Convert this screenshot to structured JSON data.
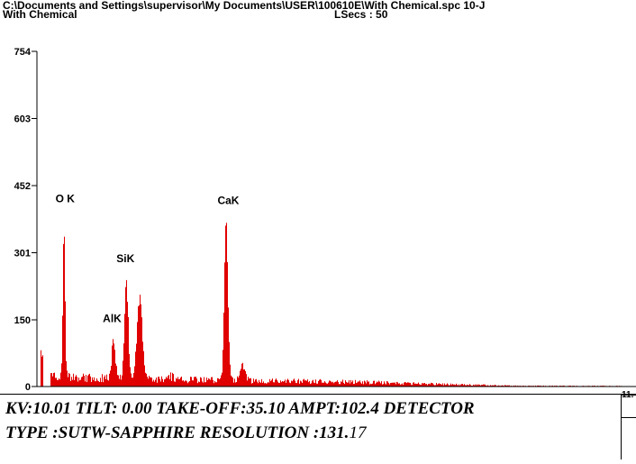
{
  "header": {
    "file_path": "C:\\Documents and Settings\\supervisor\\My Documents\\USER\\100610E\\With Chemical.spc 10-J",
    "spectrum_name": "With Chemical",
    "lsecs": "LSecs : 50"
  },
  "chart_data": {
    "type": "bar",
    "ylim": [
      0,
      754
    ],
    "y_ticks": [
      "754",
      "603",
      "452",
      "301",
      "150",
      "0"
    ],
    "y_tick_values": [
      754,
      603,
      452,
      301,
      150,
      0
    ],
    "xlim": [
      0,
      11.6
    ],
    "right_tick_label": "11.",
    "bar_color": "#e00000",
    "grid": false,
    "peaks": [
      {
        "label": "O K",
        "energy": 0.52,
        "value": 355
      },
      {
        "label": "AlK",
        "energy": 1.49,
        "value": 95
      },
      {
        "label": "SiK",
        "energy": 1.74,
        "value": 245
      },
      {
        "label": "CaK",
        "energy": 3.69,
        "value": 380
      }
    ],
    "labels": [
      {
        "id": "ok",
        "text": "O K",
        "energy": 0.55,
        "value": 415
      },
      {
        "id": "alk",
        "text": "AlK",
        "energy": 1.47,
        "value": 145
      },
      {
        "id": "sik",
        "text": "SiK",
        "energy": 1.73,
        "value": 280
      },
      {
        "id": "cak",
        "text": "CaK",
        "energy": 3.74,
        "value": 410
      }
    ]
  },
  "info": {
    "line1": "KV:10.01   TILT: 0.00   TAKE-OFF:35.10   AMPT:102.4  DETECTOR",
    "line2_bold": "TYPE :SUTW-SAPPHIRE   RESOLUTION :131.",
    "line2_tail": "17"
  }
}
